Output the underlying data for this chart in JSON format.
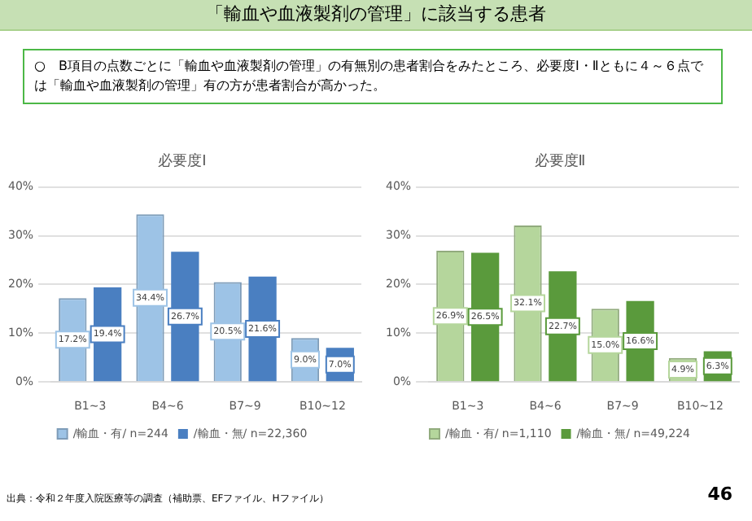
{
  "chart_data": [
    {
      "type": "bar",
      "title": "必要度Ⅰ",
      "annotations": [
        "「輸血や血液製剤の管理」に該当する患者",
        "○　B項目の点数ごとに「輸血や血液製剤の管理」の有無別の患者割合をみたところ、必要度Ⅰ・Ⅱともに４～６点では「輸血や血液製剤の管理」有の方が患者割合が高かった。",
        "出典：令和２年度入院医療等の調査（補助票、EFファイル、Hファイル）",
        "46"
      ],
      "categories": [
        "B1~3",
        "B4~6",
        "B7~9",
        "B10~12"
      ],
      "series": [
        {
          "name": "/輸血・有/ n=244",
          "color": "#9dc3e6",
          "values": [
            17.2,
            34.4,
            20.5,
            9.0
          ],
          "value_labels": [
            "17.2%",
            "34.4%",
            "20.5%",
            "9.0%"
          ]
        },
        {
          "name": "/輸血・無/ n=22,360",
          "color": "#4a7fc1",
          "values": [
            19.4,
            26.7,
            21.6,
            7.0
          ],
          "value_labels": [
            "19.4%",
            "26.7%",
            "21.6%",
            "7.0%"
          ]
        }
      ],
      "ylim": [
        0,
        40
      ],
      "yticks": [
        {
          "value": 0,
          "label": "0%"
        },
        {
          "value": 10,
          "label": "10%"
        },
        {
          "value": 20,
          "label": "20%"
        },
        {
          "value": 30,
          "label": "30%"
        },
        {
          "value": 40,
          "label": "40%"
        }
      ],
      "grid": "y",
      "legend": "bottom"
    },
    {
      "type": "bar",
      "title": "必要度Ⅱ",
      "categories": [
        "B1~3",
        "B4~6",
        "B7~9",
        "B10~12"
      ],
      "series": [
        {
          "name": "/輸血・有/ n=1,110",
          "color": "#b5d69c",
          "values": [
            26.9,
            32.1,
            15.0,
            4.9
          ],
          "value_labels": [
            "26.9%",
            "32.1%",
            "15.0%",
            "4.9%"
          ]
        },
        {
          "name": "/輸血・無/ n=49,224",
          "color": "#5a9a3c",
          "values": [
            26.5,
            22.7,
            16.6,
            6.3
          ],
          "value_labels": [
            "26.5%",
            "22.7%",
            "16.6%",
            "6.3%"
          ]
        }
      ],
      "ylim": [
        0,
        40
      ],
      "yticks": [
        {
          "value": 0,
          "label": "0%"
        },
        {
          "value": 10,
          "label": "10%"
        },
        {
          "value": 20,
          "label": "20%"
        },
        {
          "value": 30,
          "label": "30%"
        },
        {
          "value": 40,
          "label": "40%"
        }
      ],
      "grid": "y",
      "legend": "bottom"
    }
  ]
}
